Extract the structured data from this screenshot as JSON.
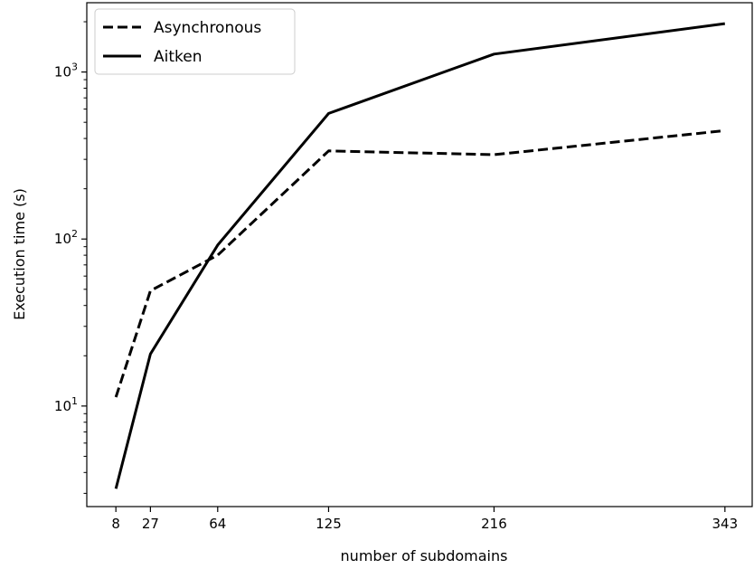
{
  "chart_data": {
    "type": "line",
    "xlabel": "number of subdomains",
    "ylabel": "Execution time (s)",
    "x": [
      8,
      27,
      64,
      125,
      216,
      343
    ],
    "xticks": [
      8,
      27,
      64,
      125,
      216,
      343
    ],
    "yscale": "log",
    "yticks": [
      {
        "value": 10,
        "base": "10",
        "exp": "1"
      },
      {
        "value": 100,
        "base": "10",
        "exp": "2"
      },
      {
        "value": 1000,
        "base": "10",
        "exp": "3"
      }
    ],
    "ylim": [
      2.5,
      2600
    ],
    "xlim": [
      -8,
      358
    ],
    "legend": "top-left",
    "series": [
      {
        "name": "Asynchronous",
        "style": "dashed",
        "color": "#000000",
        "values": [
          11.3,
          49,
          80,
          337,
          320,
          446
        ]
      },
      {
        "name": "Aitken",
        "style": "solid",
        "color": "#000000",
        "values": [
          3.2,
          20.5,
          92,
          565,
          1280,
          1950
        ]
      }
    ]
  }
}
